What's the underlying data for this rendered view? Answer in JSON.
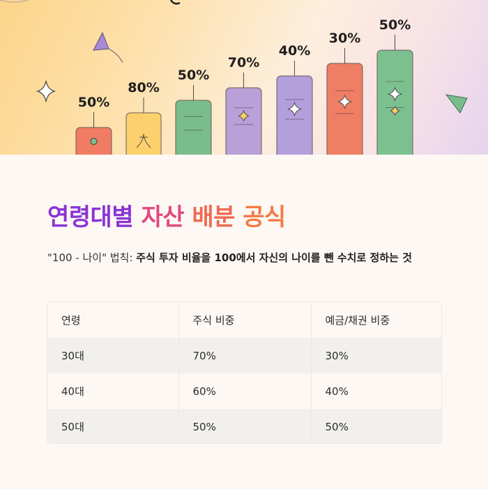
{
  "hero": {
    "bars": [
      {
        "label": "50%",
        "color": "#ef7c63"
      },
      {
        "label": "80%",
        "color": "#fcd06c"
      },
      {
        "label": "50%",
        "color": "#79bd8c"
      },
      {
        "label": "70%",
        "color": "#b9a0d8"
      },
      {
        "label": "40%",
        "color": "#b39fdc"
      },
      {
        "label": "30%",
        "color": "#ef7e64"
      },
      {
        "label": "50%",
        "color": "#7cc08f"
      }
    ]
  },
  "title": {
    "w1": "연령대별",
    "w2": "자산",
    "w3": "배분",
    "w4": "공식"
  },
  "subtitle": {
    "quote": "\"100 - 나이\" 법칙:",
    "desc": "주식 투자 비율을 100에서 자신의 나이를 뺀 수치로 정하는 것"
  },
  "table": {
    "headers": [
      "연령",
      "주식 비중",
      "예금/채권 비중"
    ],
    "rows": [
      [
        "30대",
        "70%",
        "30%"
      ],
      [
        "40대",
        "60%",
        "40%"
      ],
      [
        "50대",
        "50%",
        "50%"
      ]
    ]
  }
}
